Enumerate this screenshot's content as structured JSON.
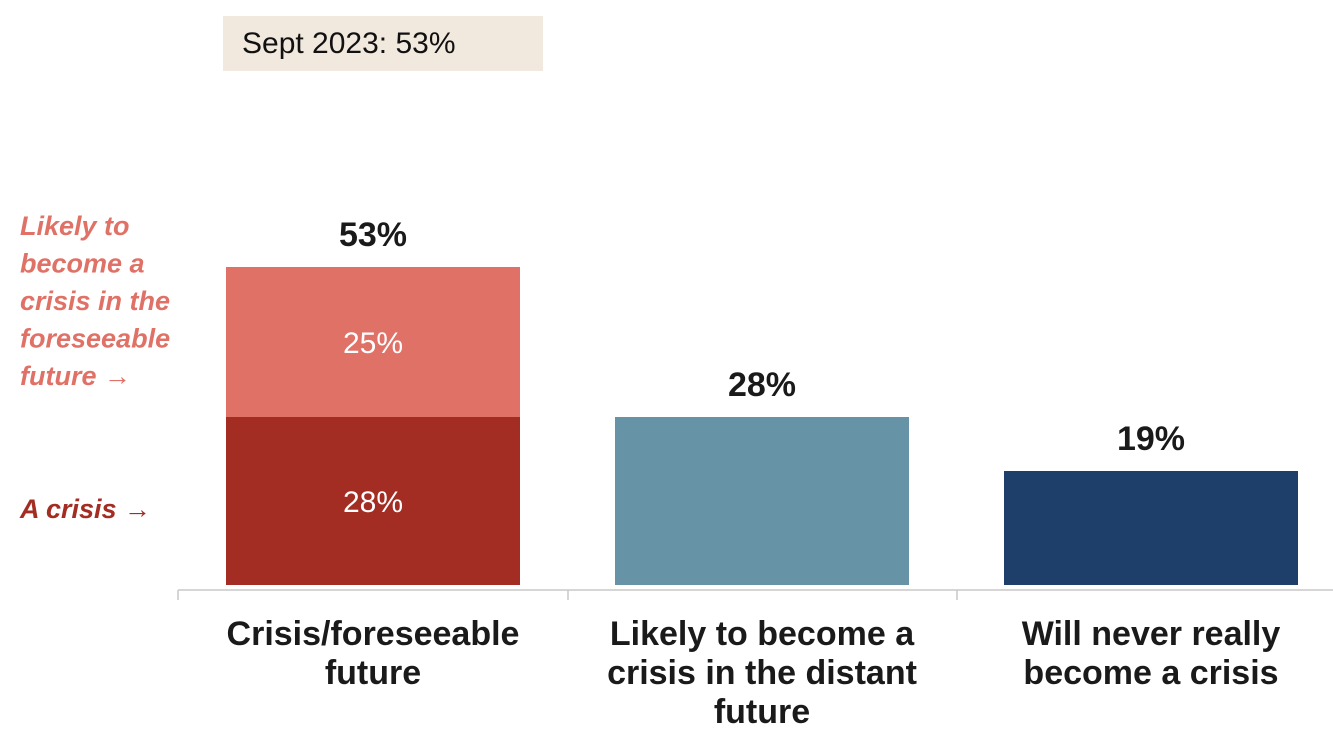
{
  "callout": {
    "text": "Sept 2023: 53%"
  },
  "side_labels": {
    "foreseeable": {
      "lines": [
        "Likely to",
        "become a",
        "crisis in the",
        "foreseeable",
        "future →"
      ]
    },
    "crisis": {
      "lines": [
        "A crisis →"
      ]
    }
  },
  "colors": {
    "foreseeable_segment": "#e07166",
    "crisis_segment": "#a32d23",
    "distant_bar": "#6693a5",
    "never_bar": "#1f3f6b",
    "foreseeable_label": "#e07166",
    "crisis_label": "#a32d23",
    "callout_bg": "#f1e9de"
  },
  "chart_data": {
    "type": "bar",
    "title": "",
    "xlabel": "",
    "ylabel": "",
    "ylim": [
      0,
      60
    ],
    "grid": false,
    "categories": [
      {
        "label_lines": [
          "Crisis/foreseeable",
          "future"
        ]
      },
      {
        "label_lines": [
          "Likely to become a",
          "crisis in the distant",
          "future"
        ]
      },
      {
        "label_lines": [
          "Will never really",
          "become a crisis"
        ]
      }
    ],
    "totals": [
      53,
      28,
      19
    ],
    "total_labels": [
      "53%",
      "28%",
      "19%"
    ],
    "segments": [
      {
        "category": 0,
        "value": 28,
        "label": "28%",
        "color_key": "crisis_segment"
      },
      {
        "category": 0,
        "value": 25,
        "label": "25%",
        "color_key": "foreseeable_segment"
      },
      {
        "category": 1,
        "value": 28,
        "label": "",
        "color_key": "distant_bar"
      },
      {
        "category": 2,
        "value": 19,
        "label": "",
        "color_key": "never_bar"
      }
    ]
  }
}
